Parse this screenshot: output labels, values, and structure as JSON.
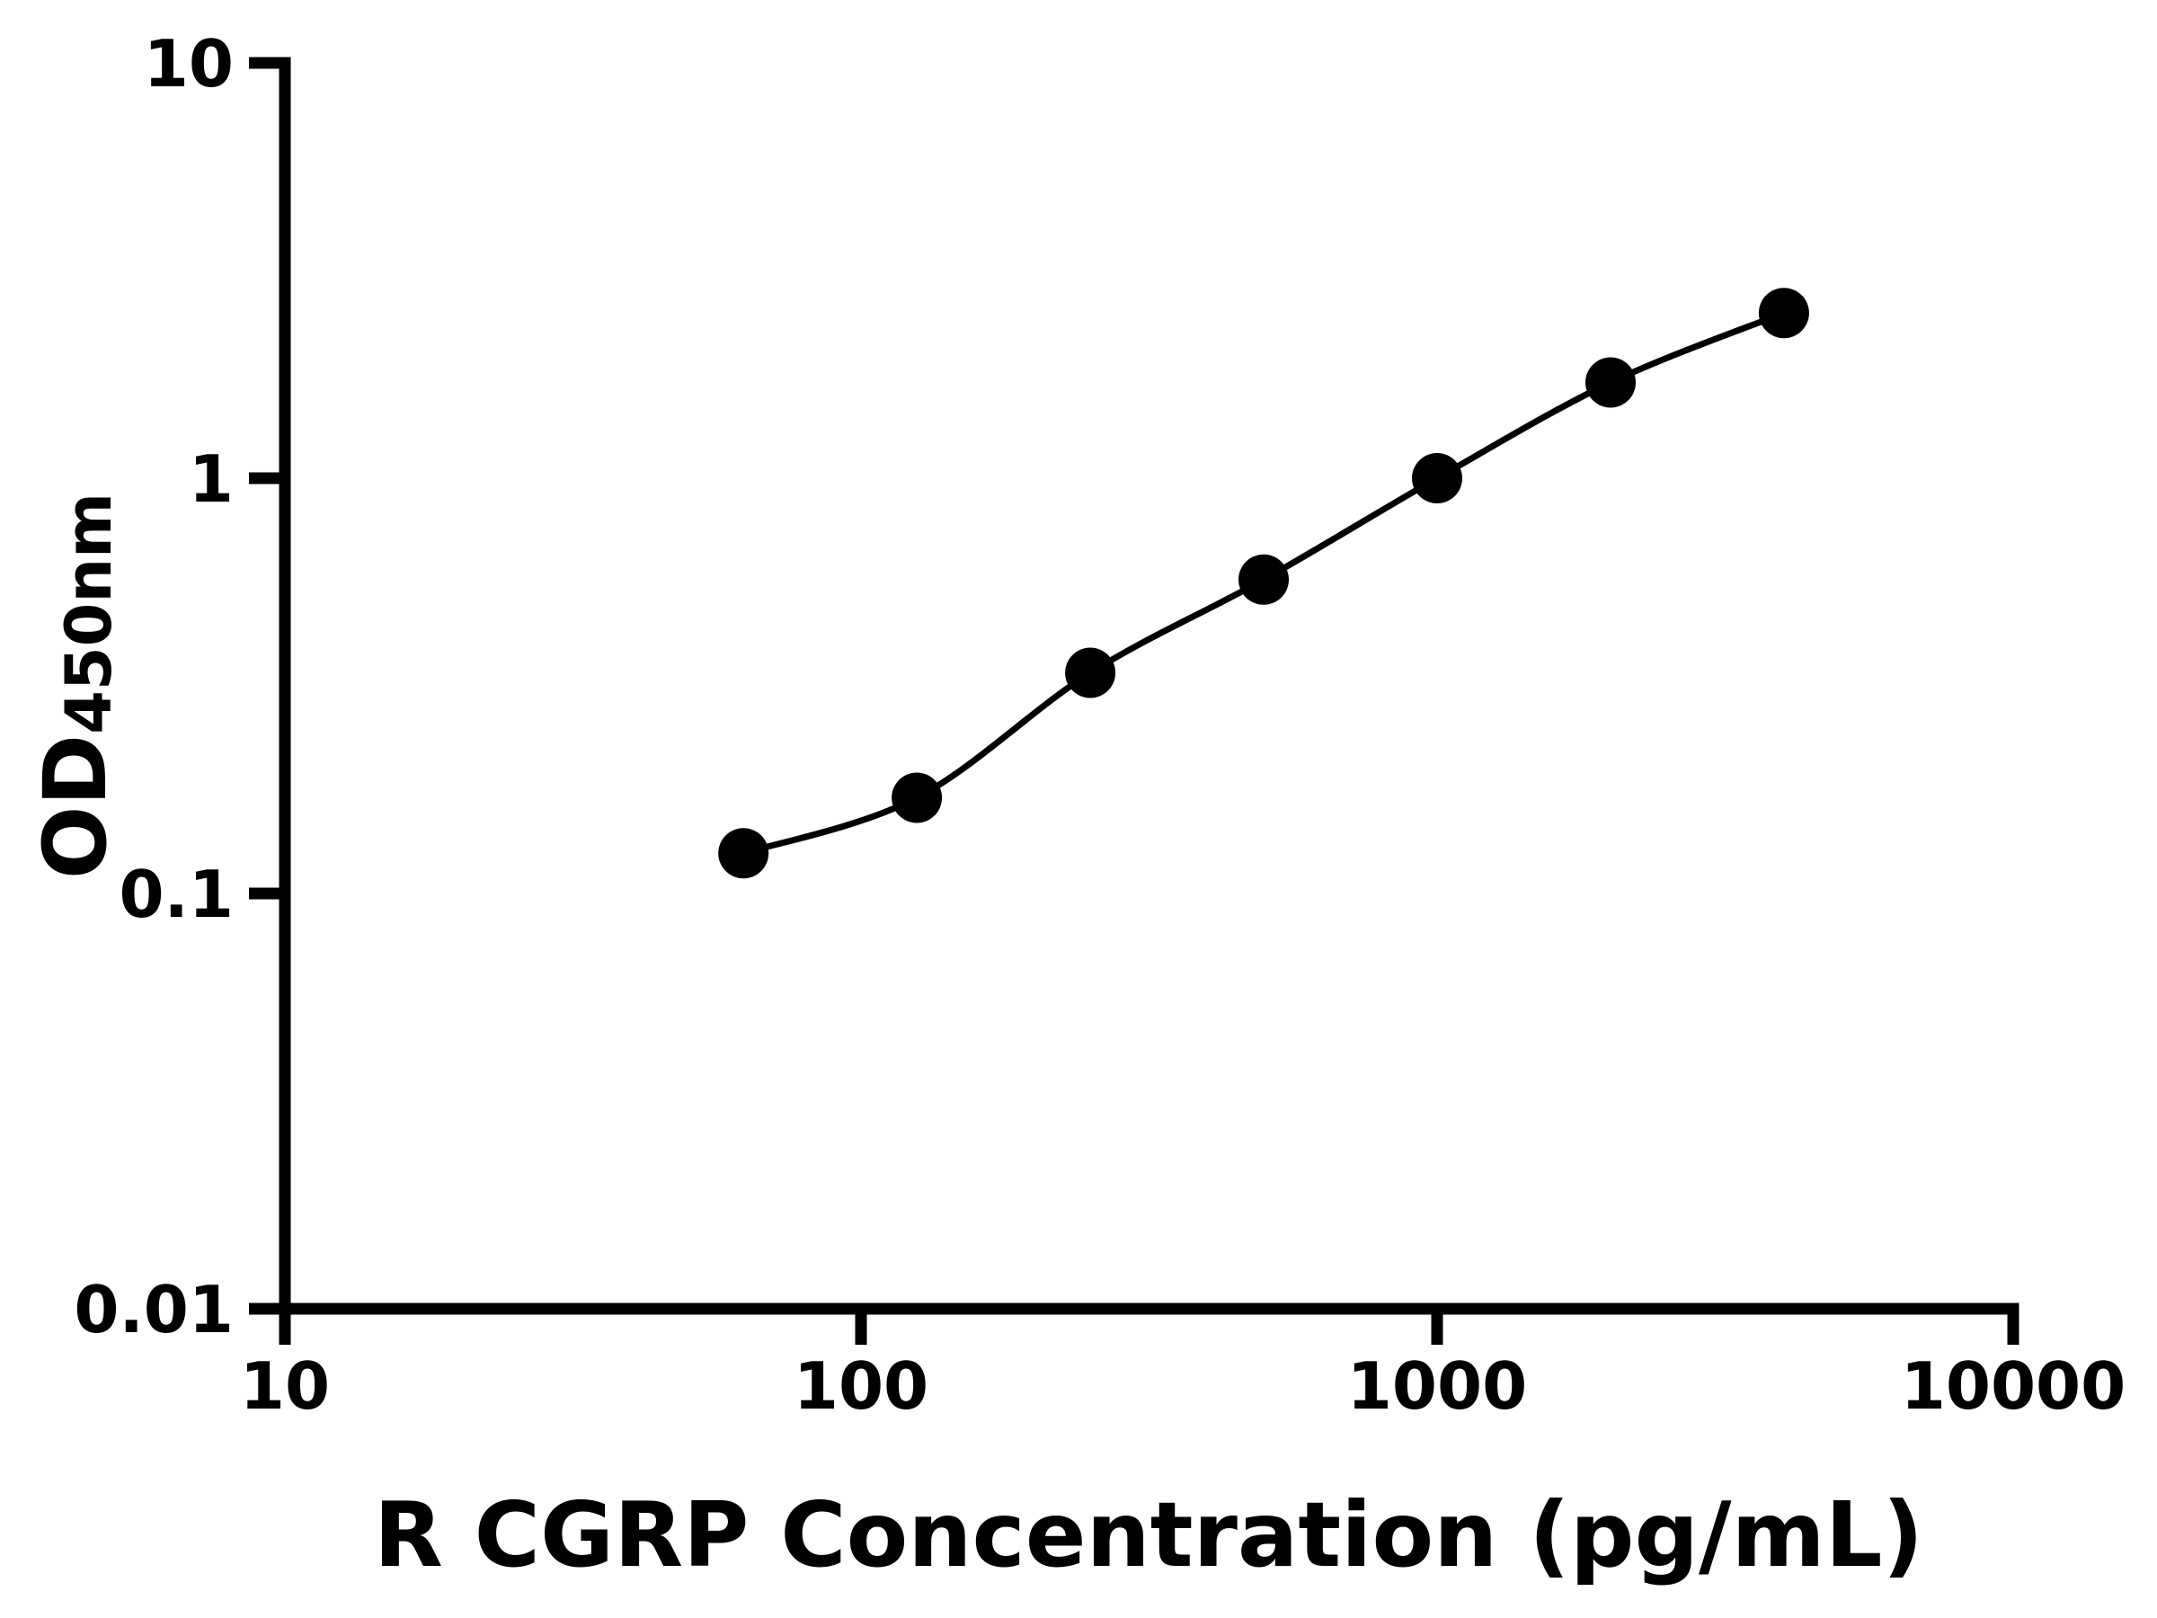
{
  "figure": {
    "background": "#ffffff",
    "foreground": "#000000"
  },
  "chart_data": {
    "type": "line",
    "title": "",
    "xlabel": "R CGRP Concentration (pg/mL)",
    "ylabel": "OD450nm",
    "ylabel_main": "OD",
    "ylabel_sub": "450nm",
    "x_scale": "log",
    "y_scale": "log",
    "xlim": [
      10,
      10000
    ],
    "ylim": [
      0.01,
      10
    ],
    "grid": false,
    "legend": "none",
    "line_color": "#000000",
    "marker": "filled-circle",
    "marker_color": "#000000",
    "x_ticks": [
      {
        "value": 10,
        "label": "10"
      },
      {
        "value": 100,
        "label": "100"
      },
      {
        "value": 1000,
        "label": "1000"
      },
      {
        "value": 10000,
        "label": "10000"
      }
    ],
    "y_ticks": [
      {
        "value": 10,
        "label": "10"
      },
      {
        "value": 1,
        "label": "1"
      },
      {
        "value": 0.1,
        "label": "0.1"
      },
      {
        "value": 0.01,
        "label": "0.01"
      }
    ],
    "series": [
      {
        "points": [
          {
            "x": 62.5,
            "y": 0.125
          },
          {
            "x": 125,
            "y": 0.17
          },
          {
            "x": 250,
            "y": 0.34
          },
          {
            "x": 500,
            "y": 0.57
          },
          {
            "x": 1000,
            "y": 1.0
          },
          {
            "x": 2000,
            "y": 1.7
          },
          {
            "x": 4000,
            "y": 2.5
          }
        ]
      }
    ]
  }
}
